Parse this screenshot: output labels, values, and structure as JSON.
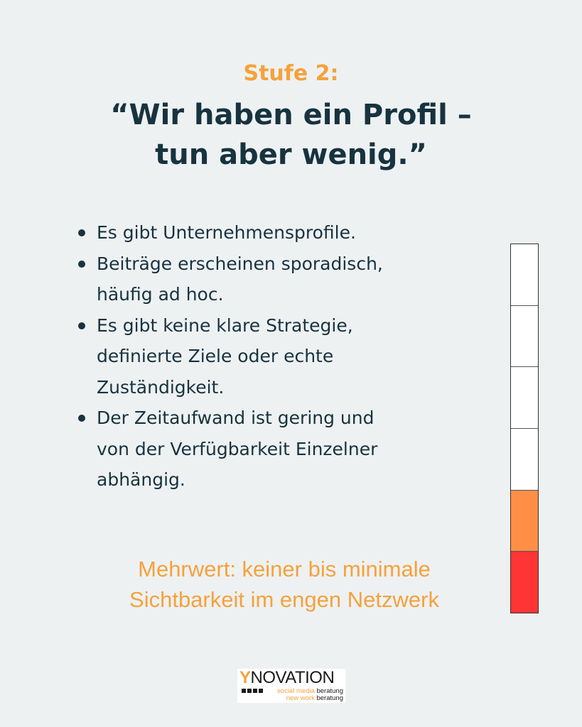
{
  "stage_label": "Stufe 2:",
  "headline_line1": "“Wir haben ein Profil –",
  "headline_line2": "tun aber wenig.”",
  "bullets": [
    {
      "lines": [
        "Es gibt Unternehmensprofile."
      ]
    },
    {
      "lines": [
        "Beiträge erscheinen sporadisch,",
        "häufig ad hoc."
      ]
    },
    {
      "lines": [
        "Es gibt keine klare Strategie,",
        "definierte Ziele oder echte",
        "Zuständigkeit."
      ]
    },
    {
      "lines": [
        "Der Zeitaufwand ist gering und",
        "von der Verfügbarkeit Einzelner",
        "abhängig."
      ]
    }
  ],
  "value_note_line1": "Mehrwert: keiner bis minimale",
  "value_note_line2": "Sichtbarkeit im engen Netzwerk",
  "meter": {
    "total_segments": 6,
    "filled_segments": 2,
    "segment_colors": [
      "#ffffff",
      "#ffffff",
      "#ffffff",
      "#ffffff",
      "#ff8f47",
      "#ff3434"
    ]
  },
  "logo": {
    "brand_initial": "Y",
    "brand_rest": "NOVATION",
    "tag1_orange": "social media",
    "tag1_dark": "beratung",
    "tag2_orange": "new work",
    "tag2_dark": "beratung"
  },
  "colors": {
    "accent": "#f4a23c",
    "text_dark": "#17333f",
    "background": "#eef1f2"
  }
}
